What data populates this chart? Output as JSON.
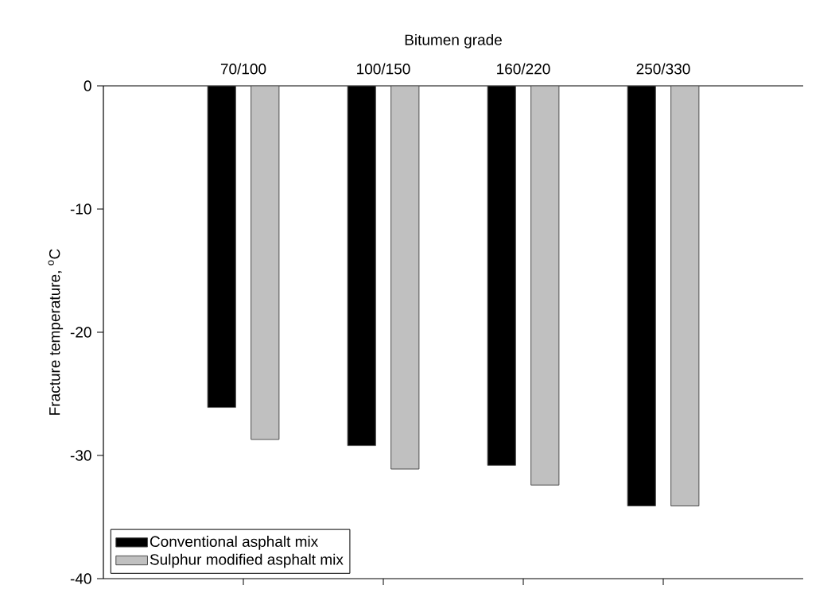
{
  "chart_data": {
    "type": "bar",
    "xlabel": "Bitumen grade",
    "ylabel": "Fracture temperature, $^{o}$C",
    "categories": [
      "70/100",
      "100/150",
      "160/220",
      "250/330"
    ],
    "series": [
      {
        "name": "Conventional asphalt mix",
        "color": "#000000",
        "values": [
          -26.1,
          -29.2,
          -30.8,
          -34.1
        ]
      },
      {
        "name": "Sulphur modified asphalt mix",
        "color": "#c0c0c0",
        "values": [
          -28.7,
          -31.1,
          -32.4,
          -34.1
        ]
      }
    ],
    "ylim": [
      -40,
      0
    ],
    "yticks": [
      -40,
      -30,
      -20,
      -10,
      0
    ],
    "legend": "bottom left"
  }
}
